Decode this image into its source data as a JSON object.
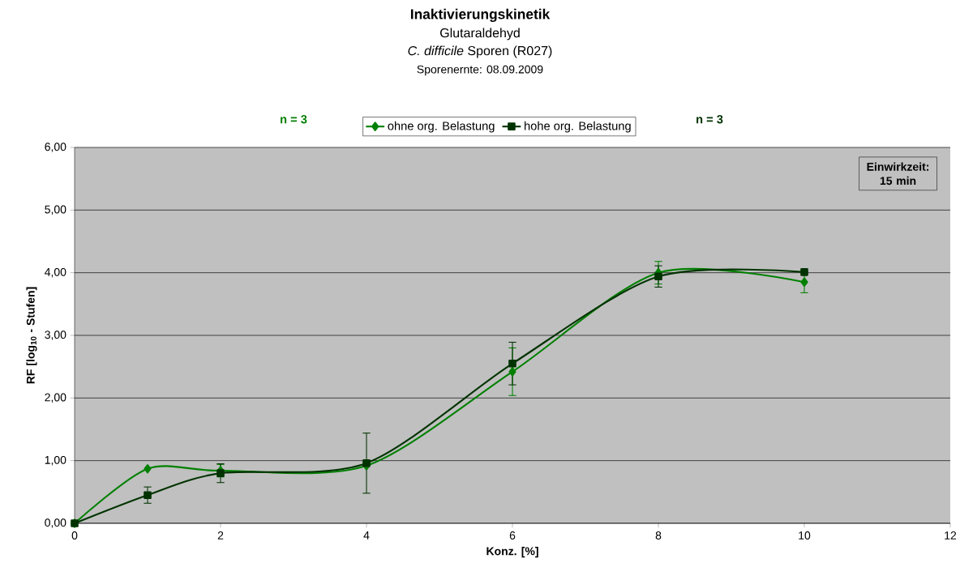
{
  "chart_data": {
    "type": "line",
    "title": "Inaktivierungskinetik",
    "subtitle": [
      "Glutaraldehyd",
      "*C. difficile* Sporen (R027)",
      "Sporenernte: 08.09.2009"
    ],
    "xlabel": "Konz. [%]",
    "ylabel": "RF [log$_{10}$ - Stufen]",
    "x": [
      0,
      1,
      2,
      4,
      6,
      8,
      10
    ],
    "series": [
      {
        "name": "ohne org. Belastung",
        "color": "#008000",
        "marker": "diamond",
        "values": [
          0,
          0.87,
          0.84,
          0.92,
          2.42,
          4.0,
          3.85
        ],
        "errors": [
          null,
          null,
          0.1,
          null,
          0.38,
          0.18,
          0.17
        ]
      },
      {
        "name": "hohe org. Belastung",
        "color": "#003300",
        "marker": "square",
        "values": [
          0,
          0.45,
          0.8,
          0.96,
          2.55,
          3.94,
          4.01
        ],
        "errors": [
          null,
          0.13,
          0.15,
          0.48,
          0.34,
          0.17,
          null
        ]
      }
    ],
    "xlim": [
      0,
      12
    ],
    "xticks": [
      0,
      2,
      4,
      6,
      8,
      10,
      12
    ],
    "ylim": [
      0,
      6
    ],
    "yticks": [
      {
        "value": 0,
        "label": "0,00"
      },
      {
        "value": 1,
        "label": "1,00"
      },
      {
        "value": 2,
        "label": "2,00"
      },
      {
        "value": 3,
        "label": "3,00"
      },
      {
        "value": 4,
        "label": "4,00"
      },
      {
        "value": 5,
        "label": "5,00"
      },
      {
        "value": 6,
        "label": "6,00"
      }
    ],
    "grid": "y",
    "legend": "top",
    "annotations": [
      "n = 3",
      "n = 3",
      "Einwirkzeit: 15 min"
    ]
  }
}
